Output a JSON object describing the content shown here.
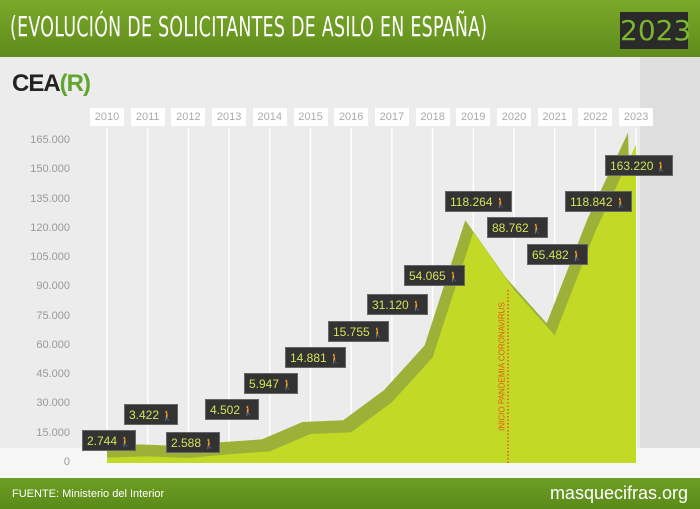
{
  "header": {
    "title": "(EVOLUCIÓN DE SOLICITANTES DE ASILO EN ESPAÑA)",
    "year": "2023",
    "logo_main": "CEA",
    "logo_paren": "(R)"
  },
  "footer": {
    "source": "FUENTE: Ministerio del Interior",
    "site": "masquecifras.org"
  },
  "chart_data": {
    "type": "area",
    "title": "EVOLUCIÓN DE SOLICITANTES DE ASILO EN ESPAÑA",
    "categories": [
      "2010",
      "2011",
      "2012",
      "2013",
      "2014",
      "2015",
      "2016",
      "2017",
      "2018",
      "2019",
      "2020",
      "2021",
      "2022",
      "2023"
    ],
    "values": [
      2744,
      3422,
      2588,
      4502,
      5947,
      14881,
      15755,
      31120,
      54065,
      118264,
      88762,
      65482,
      118842,
      163220
    ],
    "labels": [
      "2.744",
      "3.422",
      "2.588",
      "4.502",
      "5.947",
      "14.881",
      "15.755",
      "31.120",
      "54.065",
      "118.264",
      "88.762",
      "65.482",
      "118.842",
      "163.220"
    ],
    "yticks": [
      "0",
      "15.000",
      "30.000",
      "45.000",
      "60.000",
      "75.000",
      "90.000",
      "105.000",
      "120.000",
      "135.000",
      "150.000",
      "165.000"
    ],
    "ylim": [
      0,
      165000
    ],
    "annotation": "INICIO PANDEMIA CORONAVIRUS",
    "annotation_x": "2020",
    "colors": {
      "front": "#c2da25",
      "back": "#9db038",
      "label_bg": "#333333",
      "annotation": "#e8541a"
    }
  }
}
